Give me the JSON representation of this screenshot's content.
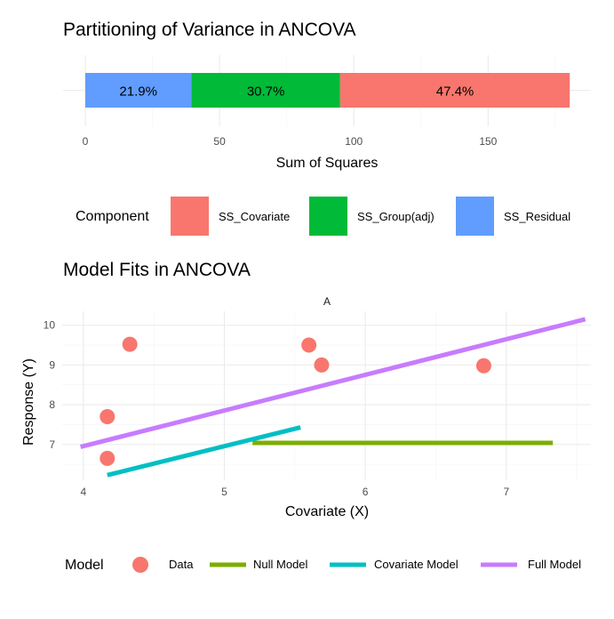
{
  "chart_data": [
    {
      "type": "bar",
      "orientation": "horizontal",
      "stacked": true,
      "title": "Partitioning of Variance in ANCOVA",
      "xlabel": "Sum of Squares",
      "ylabel": "",
      "xlim": [
        0,
        180
      ],
      "xticks": [
        0,
        50,
        100,
        150
      ],
      "grid": true,
      "legend_position": "bottom",
      "legend_title": "Component",
      "series": [
        {
          "name": "SS_Residual",
          "value": 39.5,
          "label": "21.9%",
          "color": "#619CFF"
        },
        {
          "name": "SS_Group(adj)",
          "value": 55.4,
          "label": "30.7%",
          "color": "#00BA38"
        },
        {
          "name": "SS_Covariate",
          "value": 85.5,
          "label": "47.4%",
          "color": "#F8766D"
        }
      ],
      "legend_order": [
        "SS_Covariate",
        "SS_Group(adj)",
        "SS_Residual"
      ]
    },
    {
      "type": "scatter",
      "title": "Model Fits in ANCOVA",
      "facet_label": "A",
      "xlabel": "Covariate (X)",
      "ylabel": "Response (Y)",
      "xlim": [
        3.85,
        7.6
      ],
      "ylim": [
        6.1,
        10.35
      ],
      "xticks": [
        4,
        5,
        6,
        7
      ],
      "yticks": [
        7,
        8,
        9,
        10
      ],
      "grid": true,
      "legend_position": "bottom",
      "legend_title": "Model",
      "points": {
        "name": "Data",
        "color": "#F8766D",
        "x": [
          4.17,
          4.33,
          4.17,
          5.6,
          5.69,
          6.84
        ],
        "y": [
          6.65,
          9.52,
          7.7,
          9.5,
          9.0,
          8.98
        ]
      },
      "lines": [
        {
          "name": "Null Model",
          "color": "#7CAE00",
          "x": [
            5.2,
            7.33
          ],
          "y": [
            7.04,
            7.04
          ]
        },
        {
          "name": "Covariate Model",
          "color": "#00BFC4",
          "x": [
            4.17,
            5.54
          ],
          "y": [
            6.23,
            7.43
          ]
        },
        {
          "name": "Full Model",
          "color": "#C77CFF",
          "x": [
            3.98,
            7.56
          ],
          "y": [
            6.94,
            10.15
          ]
        }
      ],
      "legend_entries": [
        {
          "name": "Data",
          "kind": "point",
          "color": "#F8766D"
        },
        {
          "name": "Null Model",
          "kind": "line",
          "color": "#7CAE00"
        },
        {
          "name": "Covariate Model",
          "kind": "line",
          "color": "#00BFC4"
        },
        {
          "name": "Full Model",
          "kind": "line",
          "color": "#C77CFF"
        }
      ]
    }
  ]
}
